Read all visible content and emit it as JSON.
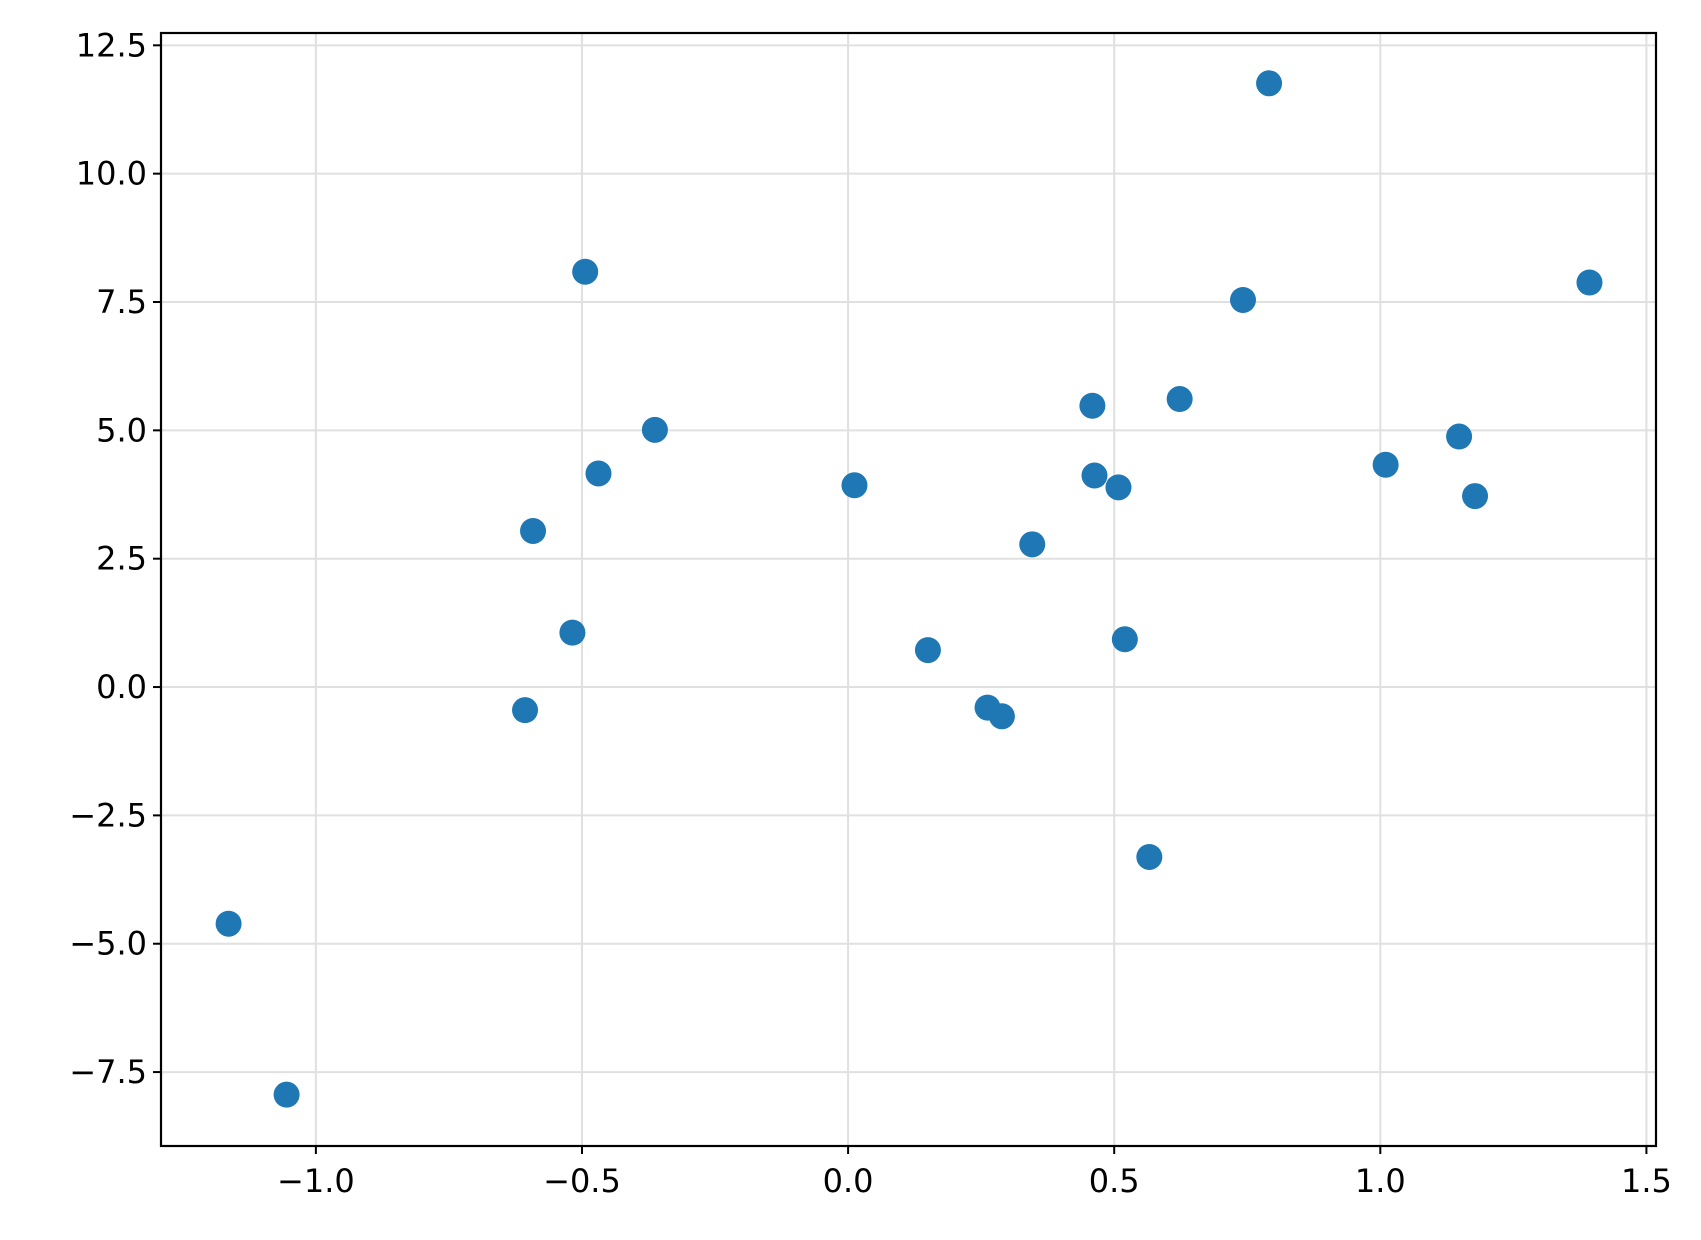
{
  "chart_data": {
    "type": "scatter",
    "color": "#1f77b4",
    "grid": true,
    "xlim": [
      -1.291,
      1.518
    ],
    "ylim": [
      -8.94,
      12.74
    ],
    "xticks": [
      {
        "value": -1.0,
        "label": "−1.0"
      },
      {
        "value": -0.5,
        "label": "−0.5"
      },
      {
        "value": 0.0,
        "label": "0.0"
      },
      {
        "value": 0.5,
        "label": "0.5"
      },
      {
        "value": 1.0,
        "label": "1.0"
      },
      {
        "value": 1.5,
        "label": "1.5"
      }
    ],
    "yticks": [
      {
        "value": -7.5,
        "label": "−7.5"
      },
      {
        "value": -5.0,
        "label": "−5.0"
      },
      {
        "value": -2.5,
        "label": "−2.5"
      },
      {
        "value": 0.0,
        "label": "0.0"
      },
      {
        "value": 2.5,
        "label": "2.5"
      },
      {
        "value": 5.0,
        "label": "5.0"
      },
      {
        "value": 7.5,
        "label": "7.5"
      },
      {
        "value": 10.0,
        "label": "10.0"
      },
      {
        "value": 12.5,
        "label": "12.5"
      }
    ],
    "x": [
      -1.164,
      -1.055,
      -0.607,
      -0.592,
      -0.518,
      -0.494,
      -0.469,
      -0.363,
      0.012,
      0.15,
      0.262,
      0.289,
      0.346,
      0.459,
      0.463,
      0.508,
      0.52,
      0.566,
      0.623,
      0.742,
      0.791,
      1.01,
      1.148,
      1.178,
      1.393
    ],
    "values": [
      -4.61,
      -7.94,
      -0.45,
      3.04,
      1.06,
      8.09,
      4.16,
      5.01,
      3.93,
      0.72,
      -0.4,
      -0.57,
      2.78,
      5.48,
      4.12,
      3.89,
      0.93,
      -3.31,
      5.61,
      7.54,
      11.76,
      4.33,
      4.88,
      3.72,
      7.88
    ]
  }
}
